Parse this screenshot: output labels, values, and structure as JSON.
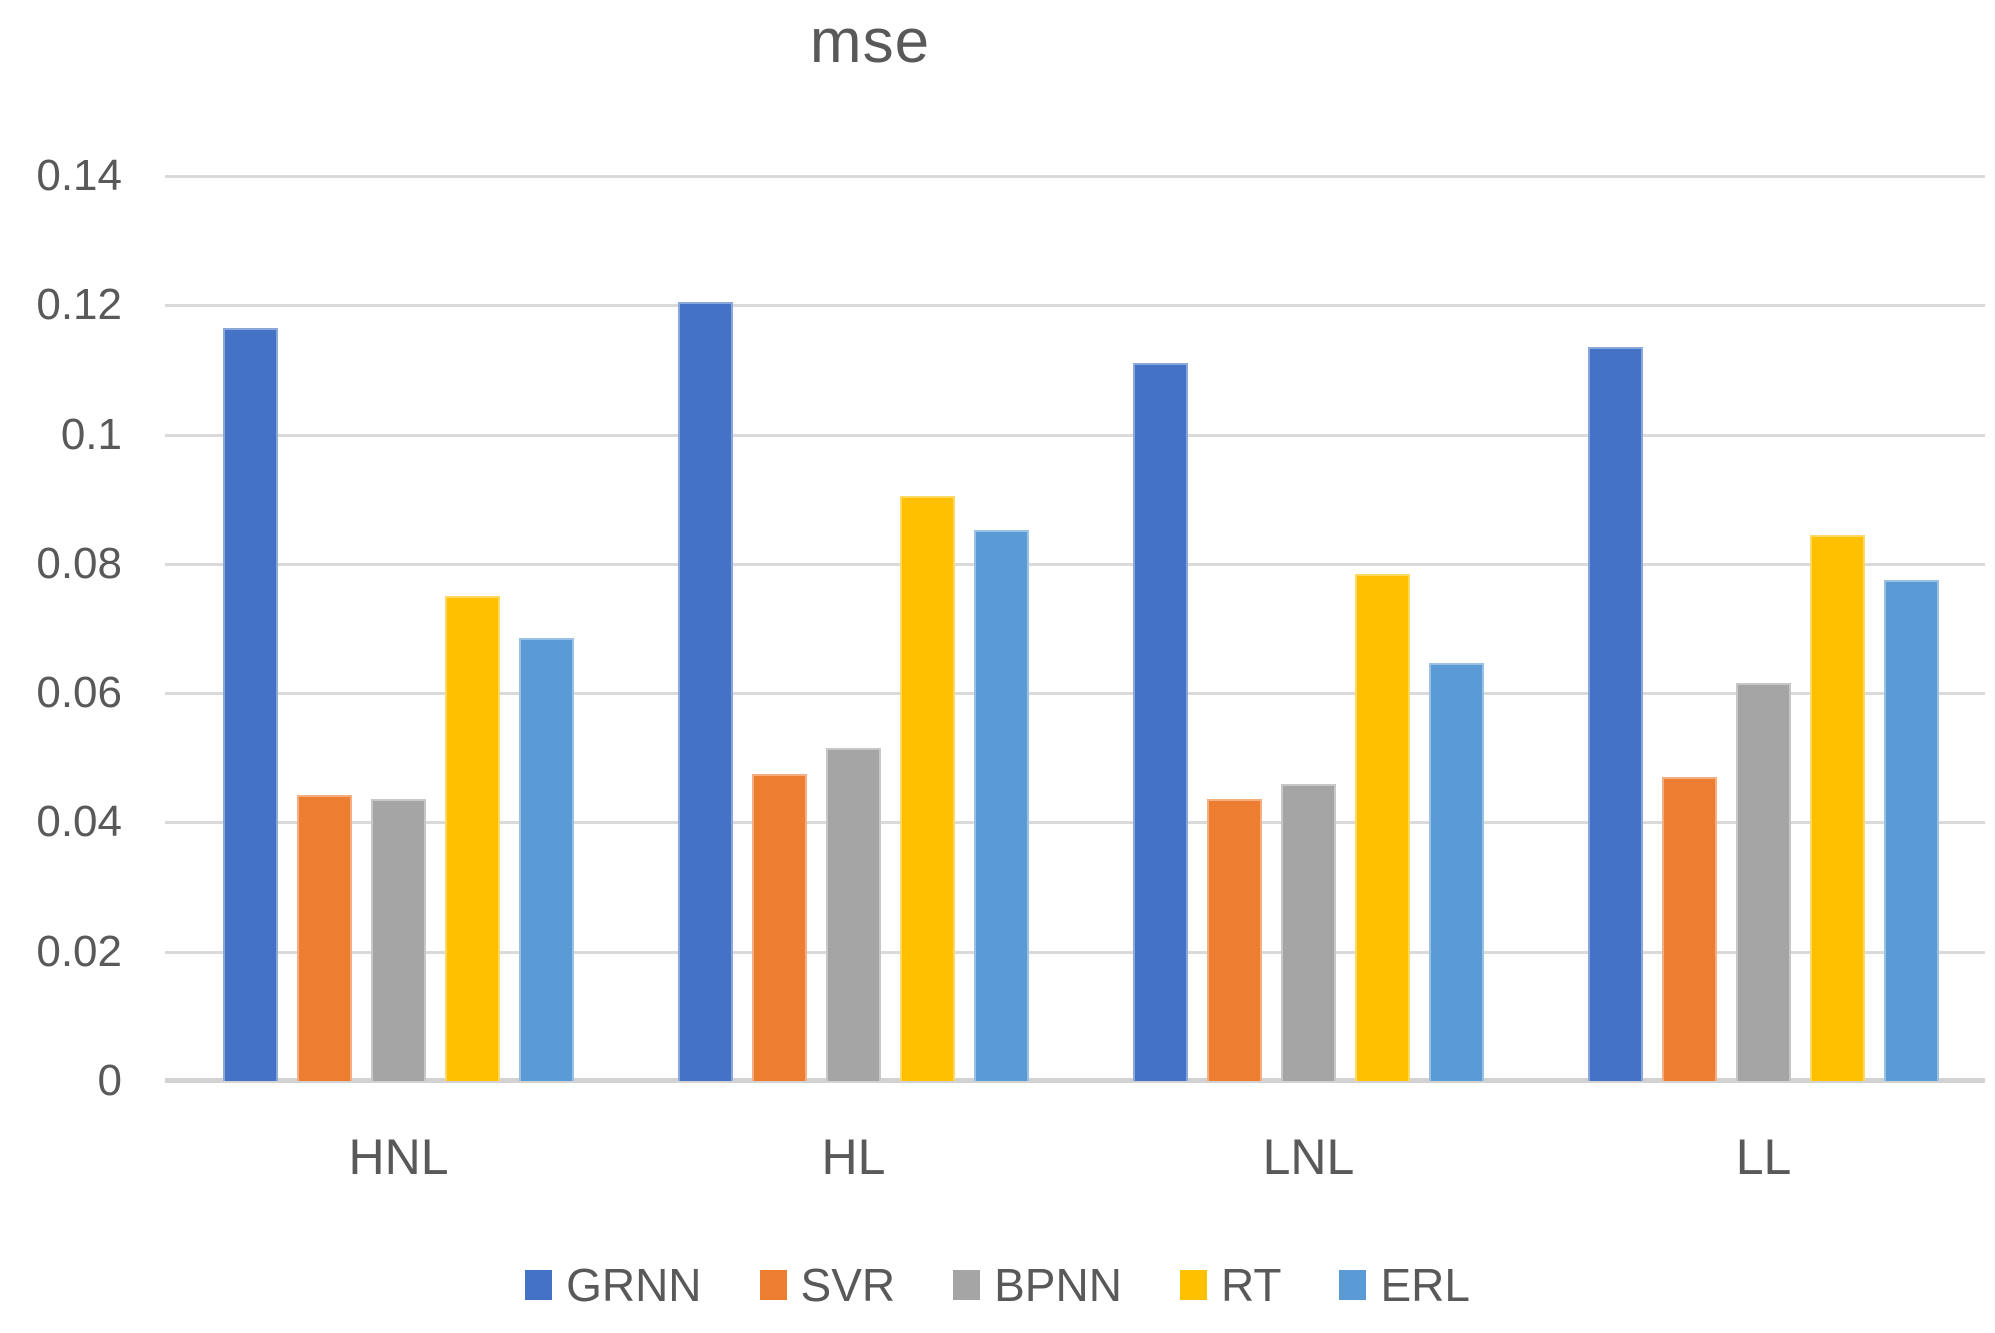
{
  "title": "mse",
  "chart_data": {
    "type": "bar",
    "title": "mse",
    "categories": [
      "HNL",
      "HL",
      "LNL",
      "LL"
    ],
    "series": [
      {
        "name": "GRNN",
        "color": "#4472C4",
        "values": [
          0.1165,
          0.1205,
          0.111,
          0.1135
        ]
      },
      {
        "name": "SVR",
        "color": "#ED7D31",
        "values": [
          0.0443,
          0.0475,
          0.0437,
          0.047
        ]
      },
      {
        "name": "BPNN",
        "color": "#A5A5A5",
        "values": [
          0.0437,
          0.0515,
          0.046,
          0.0615
        ]
      },
      {
        "name": "RT",
        "color": "#FFC000",
        "values": [
          0.075,
          0.0905,
          0.0785,
          0.0845
        ]
      },
      {
        "name": "ERL",
        "color": "#5B9BD5",
        "values": [
          0.0685,
          0.0853,
          0.0647,
          0.0775
        ]
      }
    ],
    "ylim": [
      0,
      0.14
    ],
    "ytick_interval": 0.02,
    "yticks": [
      "0.14",
      "0.12",
      "0.1",
      "0.08",
      "0.06",
      "0.04",
      "0.02",
      "0"
    ],
    "ytick_values": [
      0.14,
      0.12,
      0.1,
      0.08,
      0.06,
      0.04,
      0.02,
      0
    ],
    "grid": "horizontal",
    "legend_position": "bottom",
    "colors": {
      "gridline": "#DADADA",
      "baseline": "#D2D2D2",
      "text": "#595959",
      "background": "#FFFFFF"
    }
  }
}
